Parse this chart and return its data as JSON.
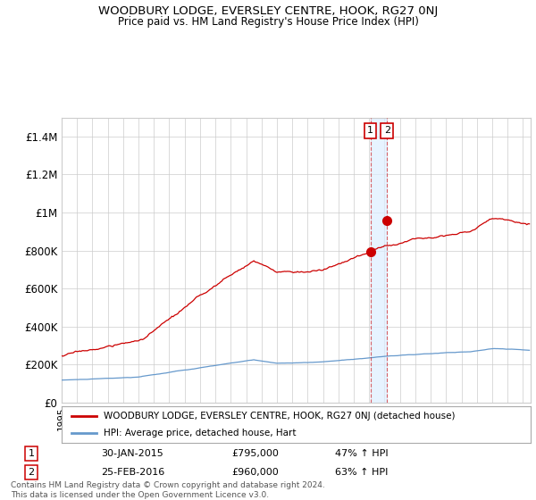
{
  "title": "WOODBURY LODGE, EVERSLEY CENTRE, HOOK, RG27 0NJ",
  "subtitle": "Price paid vs. HM Land Registry's House Price Index (HPI)",
  "ylabel_ticks": [
    "£0",
    "£200K",
    "£400K",
    "£600K",
    "£800K",
    "£1M",
    "£1.2M",
    "£1.4M"
  ],
  "ytick_values": [
    0,
    200000,
    400000,
    600000,
    800000,
    1000000,
    1200000,
    1400000
  ],
  "ylim": [
    0,
    1500000
  ],
  "legend_line1": "WOODBURY LODGE, EVERSLEY CENTRE, HOOK, RG27 0NJ (detached house)",
  "legend_line2": "HPI: Average price, detached house, Hart",
  "transaction1_label": "1",
  "transaction1_date": "30-JAN-2015",
  "transaction1_price": "£795,000",
  "transaction1_hpi": "47% ↑ HPI",
  "transaction1_x": 2015.08,
  "transaction1_y": 795000,
  "transaction2_label": "2",
  "transaction2_date": "25-FEB-2016",
  "transaction2_price": "£960,000",
  "transaction2_hpi": "63% ↑ HPI",
  "transaction2_x": 2016.16,
  "transaction2_y": 960000,
  "color_red": "#cc0000",
  "color_blue": "#6699cc",
  "color_shade": "#ddeeff",
  "footer": "Contains HM Land Registry data © Crown copyright and database right 2024.\nThis data is licensed under the Open Government Licence v3.0.",
  "xlim_start": 1995.0,
  "xlim_end": 2025.5
}
